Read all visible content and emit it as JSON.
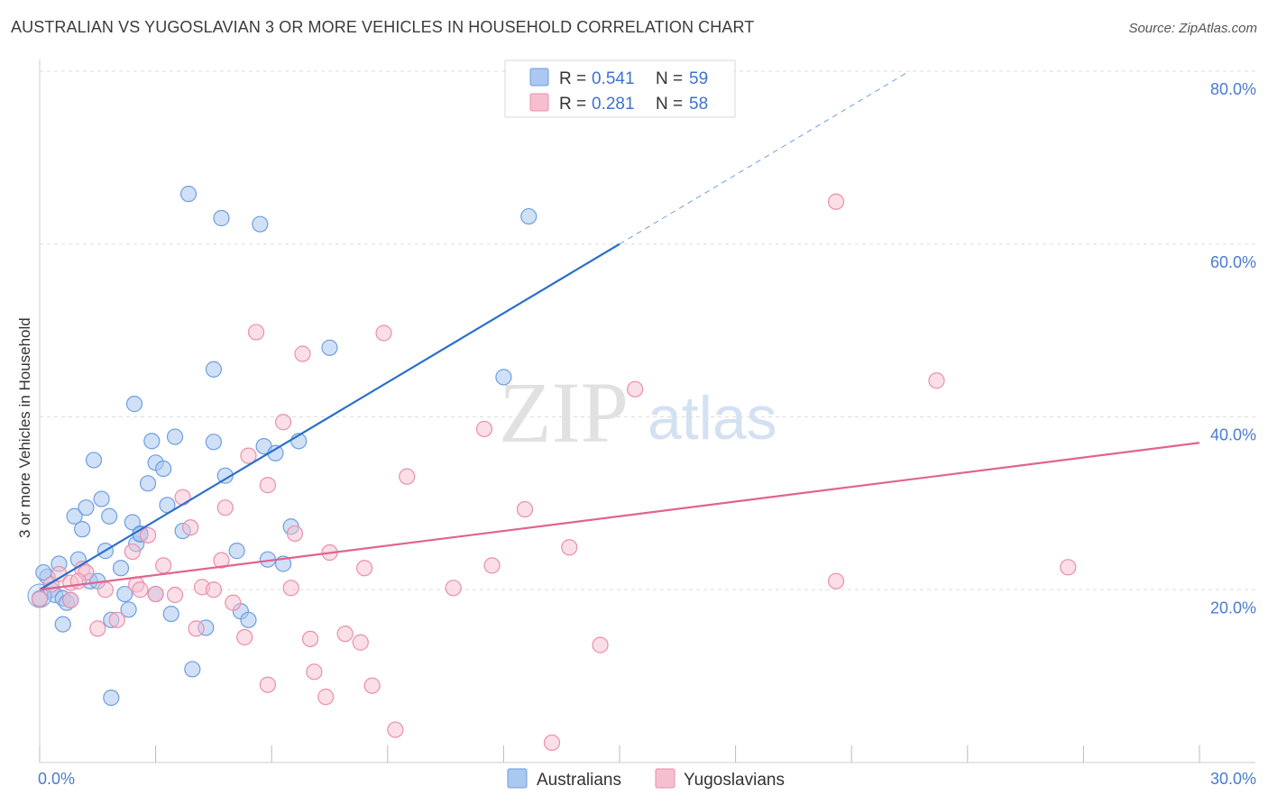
{
  "title": "AUSTRALIAN VS YUGOSLAVIAN 3 OR MORE VEHICLES IN HOUSEHOLD CORRELATION CHART",
  "source": "Source: ZipAtlas.com",
  "watermark": {
    "zip": "ZIP",
    "atlas": "atlas"
  },
  "colors": {
    "blue_fill": "#aac8f0",
    "blue_stroke": "#6f9ee0",
    "blue_line": "#2a6fcc",
    "pink_fill": "#f6bfd0",
    "pink_stroke": "#ec8eab",
    "pink_line": "#e0648f",
    "axis_label": "#4a7bd0",
    "grid": "#dedede"
  },
  "legend": {
    "rows": [
      {
        "r_label": "R =",
        "r_value": "0.541",
        "n_label": "N =",
        "n_value": "59"
      },
      {
        "r_label": "R =",
        "r_value": "0.281",
        "n_label": "N =",
        "n_value": "58"
      }
    ]
  },
  "bottom_legend": [
    "Australians",
    "Yugoslavians"
  ],
  "chart_data": {
    "type": "scatter",
    "title": "AUSTRALIAN VS YUGOSLAVIAN 3 OR MORE VEHICLES IN HOUSEHOLD CORRELATION CHART",
    "xlabel": "",
    "ylabel": "3 or more Vehicles in Household",
    "xlim": [
      0,
      30
    ],
    "ylim": [
      0,
      80
    ],
    "x_tick_labels": [
      "0.0%",
      "30.0%"
    ],
    "y_ticks": [
      20,
      40,
      60,
      80
    ],
    "y_tick_labels": [
      "20.0%",
      "40.0%",
      "60.0%",
      "80.0%"
    ],
    "grid": true,
    "legend_position": "top-center",
    "series": [
      {
        "name": "Australians",
        "color": "#aac8f0",
        "points": [
          [
            0.0,
            19.0
          ],
          [
            0.2,
            21.5
          ],
          [
            0.3,
            20.0
          ],
          [
            0.4,
            19.4
          ],
          [
            0.5,
            23.0
          ],
          [
            0.6,
            16.0
          ],
          [
            0.6,
            19.0
          ],
          [
            0.7,
            18.5
          ],
          [
            0.8,
            18.8
          ],
          [
            0.9,
            28.5
          ],
          [
            1.0,
            23.5
          ],
          [
            1.1,
            27.0
          ],
          [
            1.2,
            29.5
          ],
          [
            1.3,
            21.0
          ],
          [
            1.4,
            35.0
          ],
          [
            1.5,
            21.0
          ],
          [
            1.6,
            30.5
          ],
          [
            1.7,
            24.5
          ],
          [
            1.8,
            28.5
          ],
          [
            1.85,
            16.5
          ],
          [
            1.85,
            7.5
          ],
          [
            2.1,
            22.5
          ],
          [
            2.2,
            19.5
          ],
          [
            2.3,
            17.7
          ],
          [
            2.4,
            27.8
          ],
          [
            2.45,
            41.5
          ],
          [
            2.5,
            25.3
          ],
          [
            2.6,
            26.5
          ],
          [
            2.8,
            32.3
          ],
          [
            2.9,
            37.2
          ],
          [
            3.0,
            34.7
          ],
          [
            3.0,
            19.5
          ],
          [
            3.2,
            34.0
          ],
          [
            3.3,
            29.8
          ],
          [
            3.4,
            17.2
          ],
          [
            3.5,
            37.7
          ],
          [
            3.7,
            26.8
          ],
          [
            3.85,
            65.8
          ],
          [
            3.95,
            10.8
          ],
          [
            4.3,
            15.6
          ],
          [
            4.5,
            45.5
          ],
          [
            4.5,
            37.1
          ],
          [
            4.7,
            63.0
          ],
          [
            4.8,
            33.2
          ],
          [
            5.1,
            24.5
          ],
          [
            5.2,
            17.5
          ],
          [
            5.4,
            16.5
          ],
          [
            5.7,
            62.3
          ],
          [
            5.8,
            36.6
          ],
          [
            5.9,
            23.5
          ],
          [
            6.1,
            35.8
          ],
          [
            6.3,
            23.0
          ],
          [
            6.5,
            27.3
          ],
          [
            6.7,
            37.2
          ],
          [
            7.5,
            48.0
          ],
          [
            12.0,
            44.6
          ],
          [
            12.65,
            63.2
          ],
          [
            0.1,
            22.0
          ],
          [
            2.6,
            26.4
          ]
        ]
      },
      {
        "name": "Yugoslavians",
        "color": "#f6bfd0",
        "points": [
          [
            0.0,
            18.9
          ],
          [
            0.3,
            20.6
          ],
          [
            0.5,
            21.8
          ],
          [
            0.8,
            20.8
          ],
          [
            0.8,
            18.8
          ],
          [
            1.1,
            22.4
          ],
          [
            1.2,
            22.0
          ],
          [
            1.5,
            15.5
          ],
          [
            1.7,
            20.0
          ],
          [
            2.0,
            16.5
          ],
          [
            2.4,
            24.4
          ],
          [
            2.5,
            20.6
          ],
          [
            2.6,
            20.0
          ],
          [
            2.8,
            26.3
          ],
          [
            3.0,
            19.5
          ],
          [
            3.2,
            22.8
          ],
          [
            3.5,
            19.4
          ],
          [
            3.7,
            30.7
          ],
          [
            3.9,
            27.2
          ],
          [
            4.05,
            15.5
          ],
          [
            4.2,
            20.3
          ],
          [
            4.5,
            20.0
          ],
          [
            4.7,
            23.4
          ],
          [
            4.8,
            29.5
          ],
          [
            5.0,
            18.5
          ],
          [
            5.3,
            14.5
          ],
          [
            5.4,
            35.5
          ],
          [
            5.6,
            49.8
          ],
          [
            5.9,
            32.1
          ],
          [
            5.9,
            9.0
          ],
          [
            6.3,
            39.4
          ],
          [
            6.5,
            20.2
          ],
          [
            6.6,
            26.5
          ],
          [
            6.8,
            47.3
          ],
          [
            7.0,
            14.3
          ],
          [
            7.1,
            10.5
          ],
          [
            7.4,
            7.6
          ],
          [
            7.5,
            24.3
          ],
          [
            7.9,
            14.9
          ],
          [
            8.3,
            13.9
          ],
          [
            8.4,
            22.5
          ],
          [
            8.6,
            8.9
          ],
          [
            8.9,
            49.7
          ],
          [
            9.2,
            3.8
          ],
          [
            9.5,
            33.1
          ],
          [
            10.7,
            20.2
          ],
          [
            11.5,
            38.6
          ],
          [
            11.7,
            22.8
          ],
          [
            12.55,
            29.3
          ],
          [
            13.25,
            2.3
          ],
          [
            13.7,
            24.9
          ],
          [
            14.5,
            13.6
          ],
          [
            15.4,
            43.2
          ],
          [
            20.6,
            64.9
          ],
          [
            20.6,
            21.0
          ],
          [
            23.2,
            44.2
          ],
          [
            26.6,
            22.6
          ],
          [
            1.0,
            21.0
          ]
        ]
      }
    ],
    "trend_lines": [
      {
        "series": "Australians",
        "solid": [
          [
            0.0,
            20.0
          ],
          [
            15.0,
            60.0
          ]
        ],
        "dashed": [
          [
            15.0,
            60.0
          ],
          [
            22.5,
            80.0
          ]
        ]
      },
      {
        "series": "Yugoslavians",
        "solid": [
          [
            0.0,
            20.0
          ],
          [
            30.0,
            37.0
          ]
        ]
      }
    ]
  }
}
